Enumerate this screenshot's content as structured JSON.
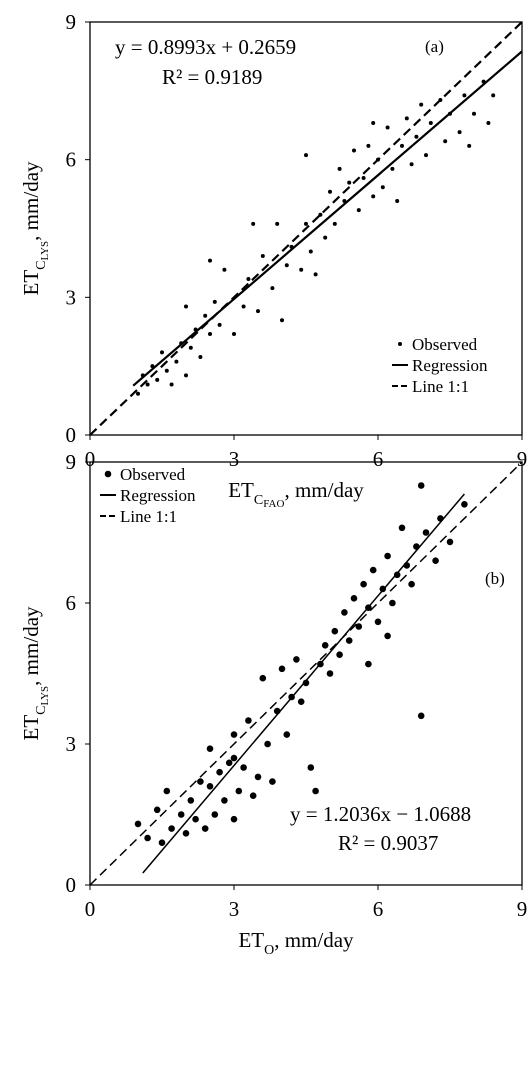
{
  "chart_data": [
    {
      "type": "scatter",
      "annotation": "(a)",
      "equation": "y = 0.8993x + 0.2659",
      "r2": "R² = 0.9189",
      "x_label": {
        "base": "ET",
        "sub": "C",
        "subsub": "FAO",
        "rest": ", mm/day"
      },
      "y_label": {
        "base": "ET",
        "sub": "C",
        "subsub": "LYS",
        "rest": ", mm/day"
      },
      "xlim": [
        0,
        9
      ],
      "ylim": [
        0,
        9
      ],
      "xticks": [
        0,
        3,
        6,
        9
      ],
      "yticks": [
        0,
        3,
        6,
        9
      ],
      "legend": "lower right",
      "series": [
        {
          "name": "Observed",
          "color": "#000000",
          "style": "dot",
          "x": [
            1.0,
            1.1,
            1.2,
            1.3,
            1.4,
            1.5,
            1.6,
            1.7,
            1.8,
            1.9,
            2.0,
            2.0,
            2.1,
            2.2,
            2.3,
            2.4,
            2.5,
            2.5,
            2.6,
            2.7,
            2.8,
            3.0,
            3.2,
            3.3,
            3.5,
            3.6,
            3.8,
            3.9,
            4.0,
            4.1,
            4.2,
            4.4,
            4.5,
            4.6,
            4.7,
            4.8,
            4.9,
            5.0,
            5.1,
            5.2,
            5.3,
            5.4,
            5.5,
            5.6,
            5.7,
            5.8,
            5.9,
            6.0,
            6.1,
            6.2,
            6.3,
            6.4,
            6.5,
            6.6,
            6.7,
            6.8,
            6.9,
            7.0,
            7.1,
            7.3,
            7.4,
            7.5,
            7.7,
            7.8,
            7.9,
            8.0,
            8.2,
            8.3,
            8.4,
            4.5,
            3.4,
            5.9
          ],
          "values": [
            0.9,
            1.3,
            1.1,
            1.5,
            1.2,
            1.8,
            1.4,
            1.1,
            1.6,
            2.0,
            1.3,
            2.8,
            1.9,
            2.3,
            1.7,
            2.6,
            2.2,
            3.8,
            2.9,
            2.4,
            3.6,
            2.2,
            2.8,
            3.4,
            2.7,
            3.9,
            3.2,
            4.6,
            2.5,
            3.7,
            4.1,
            3.6,
            4.6,
            4.0,
            3.5,
            4.8,
            4.3,
            5.3,
            4.6,
            5.8,
            5.1,
            5.5,
            6.2,
            4.9,
            5.6,
            6.3,
            5.2,
            6.0,
            5.4,
            6.7,
            5.8,
            5.1,
            6.3,
            6.9,
            5.9,
            6.5,
            7.2,
            6.1,
            6.8,
            7.3,
            6.4,
            7.0,
            6.6,
            7.4,
            6.3,
            7.0,
            7.7,
            6.8,
            7.4,
            6.1,
            4.6,
            6.8
          ]
        },
        {
          "name": "Regression",
          "color": "#000000",
          "style": "solid",
          "x": [
            0.9,
            9
          ],
          "values": [
            1.0753,
            8.3596
          ]
        },
        {
          "name": "Line 1:1",
          "color": "#000000",
          "style": "dashed",
          "x": [
            0,
            9
          ],
          "values": [
            0,
            9
          ]
        }
      ]
    },
    {
      "type": "scatter",
      "annotation": "(b)",
      "equation": "y = 1.2036x − 1.0688",
      "r2": "R² = 0.9037",
      "x_label": {
        "base": "ET",
        "sub": "O",
        "rest": ", mm/day"
      },
      "y_label": {
        "base": "ET",
        "sub": "C",
        "subsub": "LYS",
        "rest": ", mm/day"
      },
      "xlim": [
        0,
        9
      ],
      "ylim": [
        0,
        9
      ],
      "xticks": [
        0,
        3,
        6,
        9
      ],
      "yticks": [
        0,
        3,
        6,
        9
      ],
      "legend": "upper left",
      "series": [
        {
          "name": "Observed",
          "color": "#000000",
          "style": "dot",
          "x": [
            1.0,
            1.2,
            1.4,
            1.5,
            1.6,
            1.7,
            1.9,
            2.0,
            2.1,
            2.2,
            2.3,
            2.4,
            2.5,
            2.6,
            2.7,
            2.8,
            2.9,
            3.0,
            3.0,
            3.1,
            3.2,
            3.3,
            3.4,
            3.5,
            3.6,
            3.7,
            3.8,
            3.9,
            4.0,
            4.1,
            4.2,
            4.3,
            4.4,
            4.5,
            4.6,
            4.7,
            4.8,
            4.9,
            5.0,
            5.1,
            5.2,
            5.3,
            5.4,
            5.5,
            5.6,
            5.7,
            5.8,
            5.9,
            6.0,
            6.1,
            6.2,
            6.3,
            6.4,
            6.5,
            6.6,
            6.7,
            6.8,
            6.9,
            6.9,
            7.0,
            7.2,
            7.3,
            7.5,
            7.8,
            5.8,
            6.2,
            3.0,
            2.5
          ],
          "values": [
            1.3,
            1.0,
            1.6,
            0.9,
            2.0,
            1.2,
            1.5,
            1.1,
            1.8,
            1.4,
            2.2,
            1.2,
            2.9,
            1.5,
            2.4,
            1.8,
            2.6,
            1.4,
            3.2,
            2.0,
            2.5,
            3.5,
            1.9,
            2.3,
            4.4,
            3.0,
            2.2,
            3.7,
            4.6,
            3.2,
            4.0,
            4.8,
            3.9,
            4.3,
            2.5,
            2.0,
            4.7,
            5.1,
            4.5,
            5.4,
            4.9,
            5.8,
            5.2,
            6.1,
            5.5,
            6.4,
            5.9,
            6.7,
            5.6,
            6.3,
            7.0,
            6.0,
            6.6,
            7.6,
            6.8,
            6.4,
            7.2,
            3.6,
            8.5,
            7.5,
            6.9,
            7.8,
            7.3,
            8.1,
            4.7,
            5.3,
            2.7,
            2.1
          ]
        },
        {
          "name": "Regression",
          "color": "#000000",
          "style": "solid",
          "x": [
            1.1,
            7.8
          ],
          "values": [
            0.2552,
            8.3193
          ]
        },
        {
          "name": "Line 1:1",
          "color": "#000000",
          "style": "dashed",
          "x": [
            0,
            9
          ],
          "values": [
            0,
            9
          ]
        }
      ]
    }
  ]
}
